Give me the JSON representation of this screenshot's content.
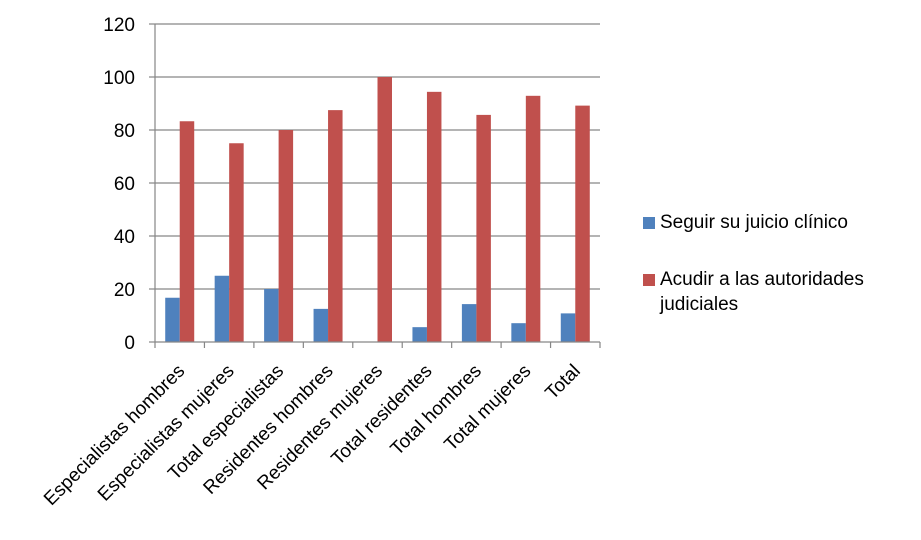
{
  "chart_data": {
    "type": "bar",
    "categories": [
      "Especialistas hombres",
      "Especialistas mujeres",
      "Total especialistas",
      "Residentes hombres",
      "Residentes mujeres",
      "Total residentes",
      "Total hombres",
      "Total mujeres",
      "Total"
    ],
    "series": [
      {
        "name": "Seguir su juicio clínico",
        "color": "#4F81BD",
        "values": [
          16.7,
          25.0,
          20.0,
          12.5,
          0,
          5.6,
          14.3,
          7.1,
          10.8
        ]
      },
      {
        "name": "Acudir a las autoridades judiciales",
        "color": "#C0504D",
        "values": [
          83.3,
          75.0,
          80.0,
          87.5,
          100,
          94.4,
          85.7,
          92.9,
          89.2
        ]
      }
    ],
    "yticks": [
      "0",
      "20",
      "40",
      "60",
      "80",
      "100",
      "120"
    ],
    "ylim": [
      0,
      120
    ],
    "grid": true,
    "legend_position": "right",
    "title": "",
    "xlabel": "",
    "ylabel": ""
  }
}
